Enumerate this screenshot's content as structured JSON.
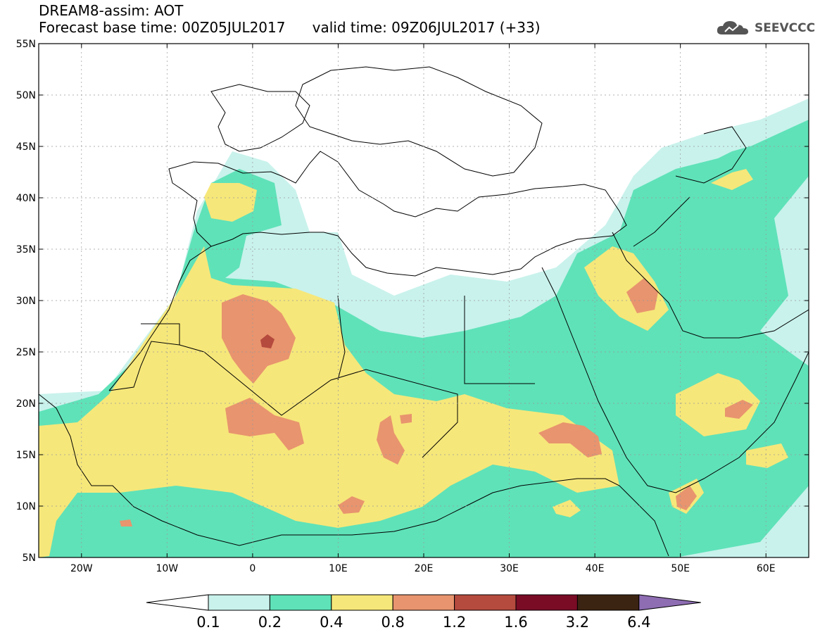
{
  "header": {
    "title_line1": "DREAM8-assim: AOT",
    "title_line2": "Forecast base time: 00Z05JUL2017      valid time: 09Z06JUL2017 (+33)",
    "logo_text": "SEEVCCC"
  },
  "axes": {
    "lat_labels": [
      "55N",
      "50N",
      "45N",
      "40N",
      "35N",
      "30N",
      "25N",
      "20N",
      "15N",
      "10N",
      "5N"
    ],
    "lon_labels": [
      "20W",
      "10W",
      "0",
      "10E",
      "20E",
      "30E",
      "40E",
      "50E",
      "60E"
    ]
  },
  "colorbar": {
    "colors": [
      "#ffffff",
      "#c9f2ec",
      "#5fe2b8",
      "#f6e77a",
      "#e8946e",
      "#b54a3e",
      "#7a0c26",
      "#3c2412",
      "#8e6db3"
    ],
    "labels": [
      "0.1",
      "0.2",
      "0.4",
      "0.8",
      "1.2",
      "1.6",
      "3.2",
      "6.4"
    ]
  },
  "legend_colors": {
    "level_02": "#c9f2ec",
    "level_04": "#5fe2b8",
    "level_08": "#f6e77a",
    "level_12": "#e8946e",
    "level_16": "#b54a3e"
  }
}
